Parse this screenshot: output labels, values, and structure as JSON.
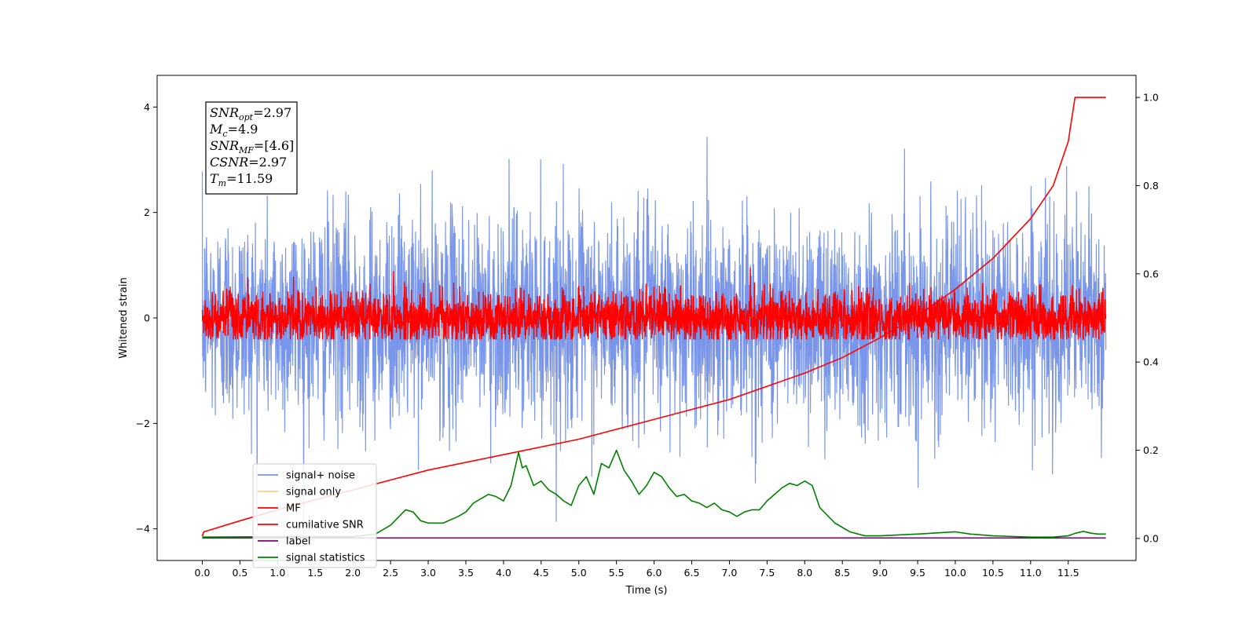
{
  "chart_data": {
    "type": "line",
    "xlabel": "Time (s)",
    "ylabel": "Whitened strain",
    "xlim": [
      -0.6,
      12.4
    ],
    "ylim": [
      -4.6,
      4.6
    ],
    "y2lim": [
      -0.05,
      1.05
    ],
    "x_ticks": [
      0.0,
      0.5,
      1.0,
      1.5,
      2.0,
      2.5,
      3.0,
      3.5,
      4.0,
      4.5,
      5.0,
      5.5,
      6.0,
      6.5,
      7.0,
      7.5,
      8.0,
      8.5,
      9.0,
      9.5,
      10.0,
      10.5,
      11.0,
      11.5
    ],
    "x_tick_labels": [
      "0.0",
      "0.5",
      "1.0",
      "1.5",
      "2.0",
      "2.5",
      "3.0",
      "3.5",
      "4.0",
      "4.5",
      "5.0",
      "5.5",
      "6.0",
      "6.5",
      "7.0",
      "7.5",
      "8.0",
      "8.5",
      "9.0",
      "9.5",
      "10.0",
      "10.5",
      "11.0",
      "11.5"
    ],
    "y_ticks": [
      -4,
      -2,
      0,
      2,
      4
    ],
    "y_tick_labels": [
      "−4",
      "−2",
      "0",
      "2",
      "4"
    ],
    "y2_ticks": [
      0.0,
      0.2,
      0.4,
      0.6,
      0.8,
      1.0
    ],
    "y2_tick_labels": [
      "0.0",
      "0.2",
      "0.4",
      "0.6",
      "0.8",
      "1.0"
    ],
    "grid": false,
    "legend_position": "lower-left",
    "annotation": {
      "lines": [
        {
          "base": "SNR",
          "sub": "opt",
          "value": "=2.97"
        },
        {
          "base": "M",
          "sub": "c",
          "value": "=4.9"
        },
        {
          "base": "SNR",
          "sub": "MF",
          "value": "=[4.6]"
        },
        {
          "base": "CSNR",
          "sub": "",
          "value": "=2.97"
        },
        {
          "base": "T",
          "sub": "m",
          "value": "=11.59"
        }
      ]
    },
    "series": [
      {
        "name": "signal+ noise",
        "color": "#4169e1",
        "axis": "left",
        "kind": "noise",
        "x_range": [
          0.0,
          12.0
        ],
        "std": 1.0,
        "range": [
          -4.1,
          4.2
        ]
      },
      {
        "name": "signal only",
        "color": "#ffa500",
        "axis": "left",
        "kind": "constant",
        "x_range": [
          0.0,
          12.0
        ],
        "value": 0.0
      },
      {
        "name": "MF",
        "color": "#ff0000",
        "axis": "left",
        "kind": "noise",
        "x_range": [
          0.0,
          12.0
        ],
        "std": 0.25,
        "range": [
          -0.4,
          1.0
        ]
      },
      {
        "name": "cumilative SNR",
        "color": "#ff0000",
        "axis": "right",
        "x": [
          0.0,
          0.02,
          0.5,
          1.0,
          2.0,
          3.0,
          4.0,
          5.0,
          6.0,
          7.0,
          7.5,
          8.0,
          8.5,
          9.0,
          9.5,
          10.0,
          10.5,
          11.0,
          11.3,
          11.5,
          11.59,
          12.0
        ],
        "values": [
          0.005,
          0.015,
          0.04,
          0.065,
          0.11,
          0.155,
          0.19,
          0.225,
          0.27,
          0.315,
          0.345,
          0.375,
          0.41,
          0.455,
          0.505,
          0.565,
          0.635,
          0.725,
          0.8,
          0.9,
          1.0,
          1.0
        ]
      },
      {
        "name": "label",
        "color": "#800080",
        "axis": "right",
        "x": [
          0.0,
          12.0
        ],
        "values": [
          0.001,
          0.001
        ]
      },
      {
        "name": "signal statistics",
        "color": "#008000",
        "axis": "right",
        "x": [
          0.0,
          1.0,
          2.0,
          2.3,
          2.5,
          2.7,
          2.8,
          2.9,
          3.0,
          3.2,
          3.4,
          3.5,
          3.6,
          3.7,
          3.8,
          3.9,
          4.0,
          4.1,
          4.2,
          4.25,
          4.3,
          4.4,
          4.5,
          4.6,
          4.7,
          4.8,
          4.9,
          5.0,
          5.1,
          5.2,
          5.3,
          5.4,
          5.5,
          5.6,
          5.7,
          5.8,
          5.9,
          6.0,
          6.1,
          6.2,
          6.3,
          6.4,
          6.5,
          6.6,
          6.7,
          6.8,
          6.9,
          7.0,
          7.1,
          7.2,
          7.3,
          7.4,
          7.5,
          7.6,
          7.7,
          7.8,
          7.9,
          8.0,
          8.1,
          8.2,
          8.4,
          8.6,
          8.8,
          9.0,
          9.5,
          9.7,
          10.0,
          10.2,
          10.5,
          11.0,
          11.3,
          11.5,
          11.6,
          11.7,
          11.8,
          11.9,
          12.0
        ],
        "values": [
          0.003,
          0.004,
          0.004,
          0.01,
          0.03,
          0.065,
          0.06,
          0.04,
          0.035,
          0.035,
          0.05,
          0.06,
          0.08,
          0.09,
          0.1,
          0.095,
          0.085,
          0.12,
          0.195,
          0.16,
          0.165,
          0.12,
          0.13,
          0.11,
          0.1,
          0.085,
          0.075,
          0.12,
          0.14,
          0.1,
          0.17,
          0.16,
          0.2,
          0.155,
          0.13,
          0.1,
          0.12,
          0.15,
          0.14,
          0.115,
          0.095,
          0.1,
          0.085,
          0.08,
          0.07,
          0.08,
          0.065,
          0.06,
          0.05,
          0.06,
          0.065,
          0.065,
          0.085,
          0.1,
          0.115,
          0.125,
          0.12,
          0.13,
          0.12,
          0.07,
          0.035,
          0.015,
          0.006,
          0.006,
          0.01,
          0.012,
          0.015,
          0.01,
          0.006,
          0.003,
          0.003,
          0.006,
          0.012,
          0.016,
          0.012,
          0.01,
          0.01
        ]
      }
    ]
  }
}
